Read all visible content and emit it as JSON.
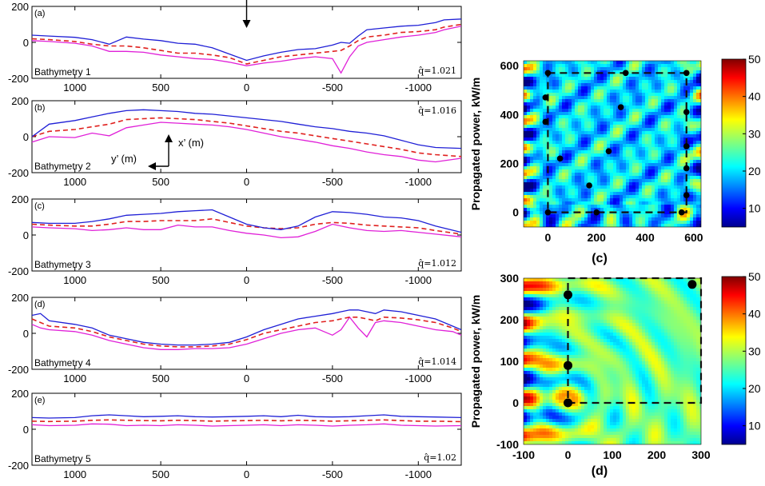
{
  "chart_data": {
    "type": "figure",
    "profiles": {
      "x_ticks": [
        "1000",
        "500",
        "0",
        "-500",
        "-1000"
      ],
      "x_tick_values": [
        1000,
        500,
        0,
        -500,
        -1000
      ],
      "xlim": [
        1250,
        -1250
      ],
      "y_ticks": [
        "200",
        "0",
        "-200"
      ],
      "y_tick_values": [
        200,
        0,
        -200
      ],
      "ylim": [
        -200,
        200
      ],
      "series_colors": {
        "upper": "#1f1fd6",
        "middle": "#e0201e",
        "lower": "#e020d8"
      },
      "panels": [
        {
          "label": "(a)",
          "name": "Bathymetry 1",
          "qhat": "q̂=1.021",
          "x": [
            1250,
            1150,
            1000,
            900,
            800,
            700,
            600,
            500,
            400,
            300,
            200,
            100,
            0,
            -100,
            -200,
            -300,
            -400,
            -500,
            -550,
            -600,
            -650,
            -700,
            -800,
            -900,
            -1000,
            -1100,
            -1150,
            -1250
          ],
          "upper": [
            40,
            35,
            28,
            15,
            -10,
            30,
            18,
            10,
            -5,
            -10,
            -30,
            -65,
            -100,
            -75,
            -55,
            -40,
            -35,
            -15,
            0,
            -5,
            35,
            70,
            80,
            90,
            95,
            110,
            125,
            130
          ],
          "middle": [
            20,
            15,
            5,
            -10,
            -20,
            -20,
            -30,
            -45,
            -60,
            -60,
            -70,
            -85,
            -120,
            -100,
            -80,
            -70,
            -60,
            -50,
            -45,
            -20,
            10,
            30,
            40,
            55,
            60,
            70,
            85,
            100
          ],
          "lower": [
            10,
            5,
            -5,
            -20,
            -50,
            -50,
            -55,
            -70,
            -80,
            -90,
            -95,
            -110,
            -130,
            -115,
            -105,
            -90,
            -80,
            -90,
            -170,
            -80,
            -20,
            0,
            15,
            30,
            40,
            55,
            70,
            90
          ]
        },
        {
          "label": "(b)",
          "name": "Bathymetry 2",
          "qhat": "q̂=1.016",
          "x": [
            1250,
            1150,
            1000,
            900,
            800,
            700,
            600,
            500,
            400,
            300,
            200,
            100,
            0,
            -100,
            -200,
            -300,
            -400,
            -500,
            -600,
            -700,
            -800,
            -900,
            -1000,
            -1100,
            -1250
          ],
          "upper": [
            0,
            70,
            90,
            110,
            130,
            145,
            150,
            145,
            140,
            130,
            125,
            115,
            105,
            95,
            85,
            70,
            55,
            45,
            30,
            20,
            5,
            -20,
            -45,
            -60,
            -65
          ],
          "middle": [
            0,
            30,
            40,
            55,
            70,
            95,
            100,
            105,
            100,
            95,
            85,
            75,
            60,
            45,
            30,
            20,
            5,
            -10,
            -25,
            -40,
            -55,
            -70,
            -90,
            -100,
            -110
          ],
          "lower": [
            -30,
            0,
            -5,
            20,
            5,
            50,
            65,
            80,
            75,
            70,
            65,
            55,
            40,
            20,
            0,
            -15,
            -30,
            -50,
            -65,
            -85,
            -100,
            -110,
            -130,
            -140,
            -120
          ]
        },
        {
          "label": "(c)",
          "name": "Bathymetry 3",
          "qhat": "q̂=1.012",
          "x": [
            1250,
            1150,
            1000,
            900,
            800,
            700,
            600,
            500,
            400,
            300,
            200,
            100,
            0,
            -100,
            -200,
            -300,
            -400,
            -500,
            -600,
            -700,
            -800,
            -900,
            -1000,
            -1100,
            -1250
          ],
          "upper": [
            70,
            65,
            65,
            75,
            90,
            110,
            115,
            120,
            130,
            135,
            140,
            100,
            60,
            40,
            30,
            50,
            100,
            130,
            125,
            115,
            100,
            95,
            80,
            50,
            15
          ],
          "middle": [
            60,
            55,
            50,
            50,
            60,
            75,
            75,
            80,
            80,
            80,
            90,
            70,
            50,
            40,
            35,
            40,
            60,
            70,
            65,
            55,
            50,
            45,
            40,
            25,
            5
          ],
          "lower": [
            45,
            40,
            35,
            25,
            30,
            40,
            30,
            30,
            55,
            45,
            45,
            25,
            10,
            0,
            -15,
            -10,
            20,
            60,
            40,
            25,
            20,
            25,
            15,
            5,
            -10
          ]
        },
        {
          "label": "(d)",
          "name": "Bathymetry 4",
          "qhat": "q̂=1.014",
          "x": [
            1250,
            1200,
            1150,
            1000,
            900,
            800,
            700,
            600,
            500,
            400,
            300,
            200,
            100,
            0,
            -100,
            -200,
            -300,
            -400,
            -500,
            -550,
            -600,
            -650,
            -700,
            -750,
            -800,
            -900,
            -1000,
            -1100,
            -1200,
            -1250
          ],
          "upper": [
            100,
            110,
            70,
            50,
            30,
            -10,
            -30,
            -50,
            -60,
            -65,
            -65,
            -60,
            -50,
            -20,
            20,
            50,
            80,
            95,
            110,
            120,
            130,
            130,
            120,
            110,
            130,
            120,
            100,
            80,
            40,
            20
          ],
          "middle": [
            80,
            60,
            40,
            30,
            10,
            -20,
            -40,
            -60,
            -70,
            -75,
            -75,
            -70,
            -60,
            -35,
            0,
            20,
            40,
            60,
            70,
            80,
            90,
            90,
            80,
            70,
            90,
            85,
            75,
            60,
            30,
            10
          ],
          "lower": [
            50,
            30,
            20,
            10,
            -10,
            -40,
            -60,
            -80,
            -90,
            -90,
            -85,
            -85,
            -80,
            -60,
            -30,
            0,
            20,
            30,
            -10,
            20,
            90,
            30,
            -20,
            60,
            70,
            60,
            40,
            20,
            10,
            -10
          ]
        },
        {
          "label": "(e)",
          "name": "Bathymetry 5",
          "qhat": "q̂=1.02",
          "x": [
            1250,
            1150,
            1000,
            900,
            800,
            700,
            600,
            500,
            400,
            300,
            200,
            100,
            0,
            -100,
            -200,
            -300,
            -400,
            -500,
            -600,
            -700,
            -800,
            -900,
            -1000,
            -1100,
            -1250
          ],
          "upper": [
            65,
            62,
            65,
            75,
            80,
            75,
            70,
            72,
            75,
            70,
            68,
            70,
            72,
            75,
            70,
            78,
            70,
            68,
            70,
            75,
            80,
            72,
            70,
            68,
            65
          ],
          "middle": [
            45,
            43,
            45,
            50,
            52,
            50,
            48,
            47,
            50,
            48,
            45,
            47,
            48,
            50,
            47,
            50,
            48,
            45,
            47,
            50,
            52,
            48,
            45,
            45,
            42
          ],
          "lower": [
            25,
            20,
            22,
            30,
            28,
            20,
            22,
            20,
            25,
            22,
            18,
            20,
            22,
            25,
            20,
            25,
            22,
            18,
            22,
            25,
            30,
            22,
            20,
            18,
            20
          ]
        }
      ],
      "arrow_annotation": {
        "x": 0,
        "y_top": 210,
        "y_tip": 80
      },
      "axes_annotation": {
        "x_label": "x’ (m)",
        "y_label": "y’ (m)"
      }
    },
    "heatmaps": [
      {
        "id": "(c)",
        "type": "heatmap",
        "ylabel": "Propagated power, kW/m",
        "x_ticks": [
          "0",
          "200",
          "400",
          "600"
        ],
        "x_tick_values": [
          0,
          200,
          400,
          600
        ],
        "y_ticks": [
          "0",
          "200",
          "400",
          "600"
        ],
        "y_tick_values": [
          0,
          200,
          400,
          600
        ],
        "xlim": [
          -100,
          630
        ],
        "ylim": [
          -60,
          620
        ],
        "colorbar_ticks": [
          "10",
          "20",
          "30",
          "40",
          "50"
        ],
        "colorbar_values": [
          10,
          20,
          30,
          40,
          50
        ],
        "colorbar_range": [
          5,
          50
        ],
        "dashed_box": {
          "x0": 0,
          "y0": 0,
          "x1": 570,
          "y1": 570
        },
        "points": [
          {
            "x": 0,
            "y": 570
          },
          {
            "x": 320,
            "y": 570
          },
          {
            "x": 570,
            "y": 570
          },
          {
            "x": -10,
            "y": 470
          },
          {
            "x": 300,
            "y": 430
          },
          {
            "x": 570,
            "y": 410
          },
          {
            "x": -10,
            "y": 370
          },
          {
            "x": 570,
            "y": 270
          },
          {
            "x": 250,
            "y": 250
          },
          {
            "x": 50,
            "y": 220
          },
          {
            "x": 570,
            "y": 180
          },
          {
            "x": 170,
            "y": 110
          },
          {
            "x": 570,
            "y": 70
          },
          {
            "x": 0,
            "y": 0
          },
          {
            "x": 200,
            "y": 0
          },
          {
            "x": 550,
            "y": 0
          }
        ]
      },
      {
        "id": "(d)",
        "type": "heatmap",
        "ylabel": "Propagated power, kW/m",
        "x_ticks": [
          "-100",
          "0",
          "100",
          "200",
          "300"
        ],
        "x_tick_values": [
          -100,
          0,
          100,
          200,
          300
        ],
        "y_ticks": [
          "-100",
          "0",
          "100",
          "200",
          "300"
        ],
        "y_tick_values": [
          -100,
          0,
          100,
          200,
          300
        ],
        "xlim": [
          -100,
          300
        ],
        "ylim": [
          -100,
          300
        ],
        "colorbar_ticks": [
          "10",
          "20",
          "30",
          "40",
          "50"
        ],
        "colorbar_values": [
          10,
          20,
          30,
          40,
          50
        ],
        "colorbar_range": [
          5,
          50
        ],
        "dashed_box": {
          "x0": 0,
          "y0": 0,
          "x1": 300,
          "y1": 300
        },
        "points": [
          {
            "x": 0,
            "y": 260
          },
          {
            "x": 280,
            "y": 285
          },
          {
            "x": 0,
            "y": 90
          },
          {
            "x": 0,
            "y": 0
          }
        ]
      }
    ]
  }
}
